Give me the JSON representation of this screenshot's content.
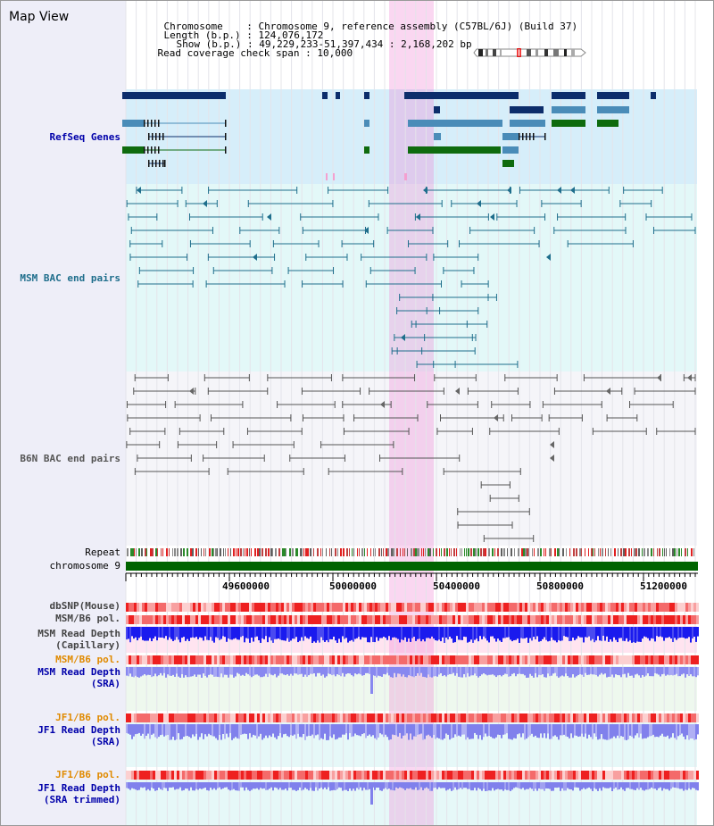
{
  "view_title": "Map View",
  "info": {
    "chromosome_label": "Chromosome",
    "chromosome_value": "Chromosome 9, reference assembly (C57BL/6J) (Build 37)",
    "length_label": "Length (b.p.)",
    "length_value": "124,076,172",
    "show_label": "Show (b.p.)",
    "show_value": "49,229,233-51,397,434 : 2,168,202 bp",
    "read_span_label": "Read coverage check span",
    "read_span_value": "10,000"
  },
  "tracks": {
    "refseq": "RefSeq Genes",
    "msm_bac": "MSM BAC end pairs",
    "b6n_bac": "B6N BAC end pairs",
    "repeat": "Repeat",
    "chromosome": "chromosome 9",
    "dbsnp": "dbSNP(Mouse)",
    "msm_b6_pol": "MSM/B6 pol.",
    "msm_depth_cap_1": "MSM Read Depth",
    "msm_depth_cap_2": "(Capillary)",
    "msm_b6_pol_2": "MSM/B6 pol.",
    "msm_depth_sra_1": "MSM Read Depth",
    "msm_depth_sra_2": "(SRA)",
    "jf1_b6_pol": "JF1/B6 pol.",
    "jf1_depth_sra_1": "JF1 Read Depth",
    "jf1_depth_sra_2": "(SRA)",
    "jf1_b6_pol_2": "JF1/B6 pol.",
    "jf1_depth_trim_1": "JF1 Read Depth",
    "jf1_depth_trim_2": "(SRA trimmed)"
  },
  "axis": {
    "ticks": [
      "49600000",
      "50000000",
      "50400000",
      "50800000",
      "51200000"
    ]
  },
  "colors": {
    "refseq_band": "#d6eefa",
    "msm_band": "#e3f8f8",
    "b6n_band": "#f4f4f8",
    "highlight": "#f8c8ec",
    "gene_navy": "#0c2d6b",
    "gene_blue": "#4a8cb8",
    "gene_green": "#0e6b0e",
    "msm_line": "#1f6e8c",
    "b6n_line": "#555555",
    "chromosome_bar": "#006400",
    "depth_blue": "#1a1aee",
    "pol_red": "#ee2020",
    "label_blue": "#0000aa",
    "label_orange": "#e08a00"
  }
}
